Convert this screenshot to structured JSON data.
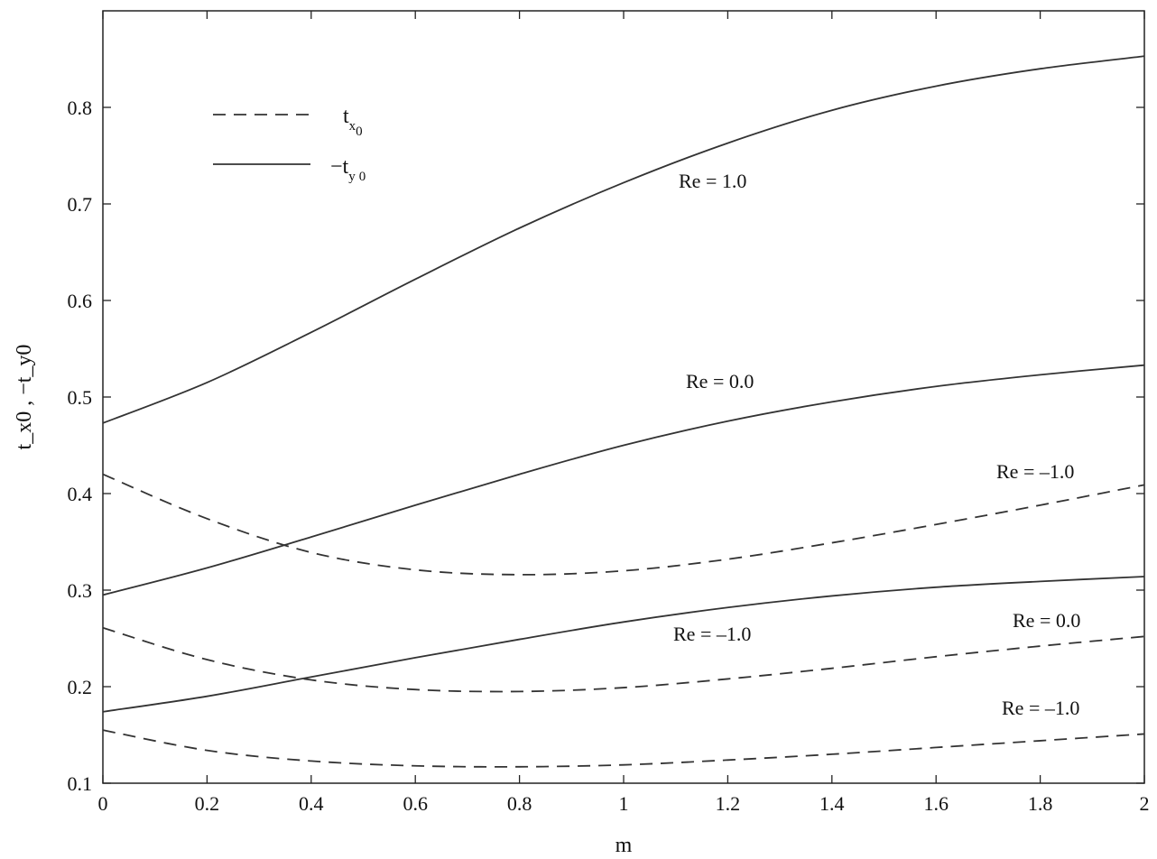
{
  "chart_data": {
    "type": "line",
    "xlabel": "m",
    "ylabel": "t_x0 , −t_y0",
    "xlim": [
      0,
      2
    ],
    "ylim": [
      0.1,
      0.9
    ],
    "x_ticks": [
      0,
      0.2,
      0.4,
      0.6,
      0.8,
      1,
      1.2,
      1.4,
      1.6,
      1.8,
      2
    ],
    "x_tick_labels": [
      "0",
      "0.2",
      "0.4",
      "0.6",
      "0.8",
      "1",
      "1.2",
      "1.4",
      "1.6",
      "1.8",
      "2"
    ],
    "y_ticks": [
      0.1,
      0.2,
      0.3,
      0.4,
      0.5,
      0.6,
      0.7,
      0.8
    ],
    "y_tick_labels": [
      "0.1",
      "0.2",
      "0.3",
      "0.4",
      "0.5",
      "0.6",
      "0.7",
      "0.8"
    ],
    "grid": false,
    "legend": {
      "placement": "top-left",
      "entries": [
        {
          "base": "t",
          "sub": "x",
          "subsub": "0",
          "style": "dashed"
        },
        {
          "base": "−t",
          "sub": "y",
          "subsub": "0",
          "style": "solid"
        }
      ]
    },
    "x": [
      0,
      0.2,
      0.4,
      0.6,
      0.8,
      1.0,
      1.2,
      1.4,
      1.6,
      1.8,
      2.0
    ],
    "series": [
      {
        "style": "solid",
        "label": "Re = 1.0",
        "values": [
          0.473,
          0.515,
          0.567,
          0.622,
          0.675,
          0.722,
          0.763,
          0.797,
          0.822,
          0.84,
          0.853
        ]
      },
      {
        "style": "solid",
        "label": "Re = 0.0",
        "values": [
          0.295,
          0.323,
          0.355,
          0.388,
          0.42,
          0.45,
          0.475,
          0.495,
          0.511,
          0.523,
          0.533
        ]
      },
      {
        "style": "solid",
        "label": "Re = –1.0",
        "values": [
          0.174,
          0.19,
          0.21,
          0.23,
          0.249,
          0.267,
          0.282,
          0.294,
          0.303,
          0.309,
          0.314
        ]
      },
      {
        "style": "dashed",
        "label": "Re = –1.0",
        "values": [
          0.42,
          0.374,
          0.339,
          0.321,
          0.316,
          0.32,
          0.332,
          0.349,
          0.368,
          0.388,
          0.409
        ]
      },
      {
        "style": "dashed",
        "label": "Re = 0.0",
        "values": [
          0.261,
          0.228,
          0.207,
          0.197,
          0.195,
          0.199,
          0.208,
          0.219,
          0.231,
          0.242,
          0.252
        ]
      },
      {
        "style": "dashed",
        "label": "Re = –1.0",
        "values": [
          0.155,
          0.134,
          0.123,
          0.118,
          0.117,
          0.119,
          0.124,
          0.13,
          0.137,
          0.144,
          0.151
        ]
      }
    ]
  }
}
